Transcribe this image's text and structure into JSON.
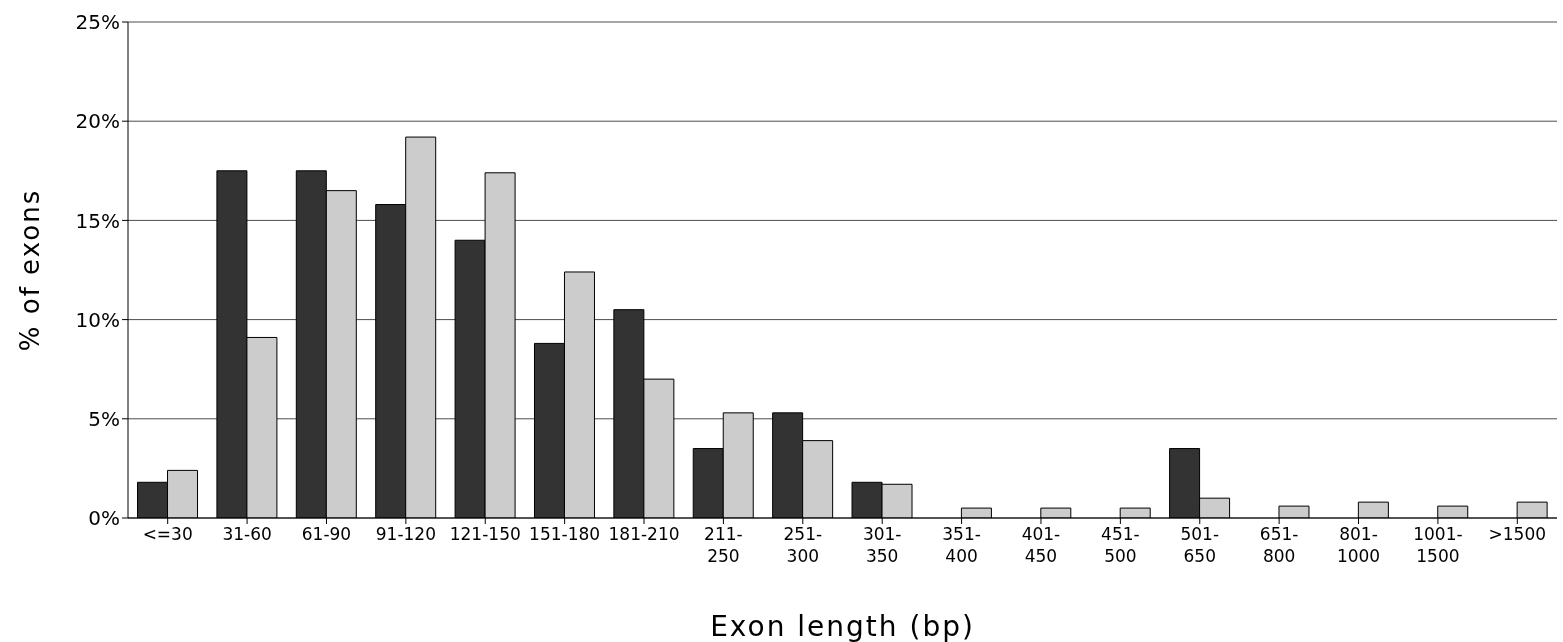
{
  "chart_data": {
    "type": "bar",
    "xlabel": "Exon length (bp)",
    "ylabel": "% of exons",
    "categories": [
      "<=30",
      "31-60",
      "61-90",
      "91-120",
      "121-150",
      "151-180",
      "181-210",
      "211-\n250",
      "251-\n300",
      "301-\n350",
      "351-\n400",
      "401-\n450",
      "451-\n500",
      "501-\n650",
      "651-\n800",
      "801-\n1000",
      "1001-\n1500",
      ">1500"
    ],
    "series": [
      {
        "color": "#333333",
        "values": [
          1.8,
          17.5,
          17.5,
          15.8,
          14.0,
          8.8,
          10.5,
          3.5,
          5.3,
          1.8,
          0,
          0,
          0,
          3.5,
          0,
          0,
          0,
          0
        ]
      },
      {
        "color": "#cccccc",
        "values": [
          2.4,
          9.1,
          16.5,
          19.2,
          17.4,
          12.4,
          7.0,
          5.3,
          3.9,
          1.7,
          0.5,
          0.5,
          0.5,
          1.0,
          0.6,
          0.8,
          0.6,
          0.8
        ]
      }
    ],
    "ylim": [
      0,
      25
    ],
    "yticks": [
      {
        "value": 0,
        "label": "0%"
      },
      {
        "value": 5,
        "label": "5%"
      },
      {
        "value": 10,
        "label": "10%"
      },
      {
        "value": 15,
        "label": "15%"
      },
      {
        "value": 20,
        "label": "20%"
      },
      {
        "value": 25,
        "label": "25%"
      }
    ],
    "grid": "y"
  }
}
